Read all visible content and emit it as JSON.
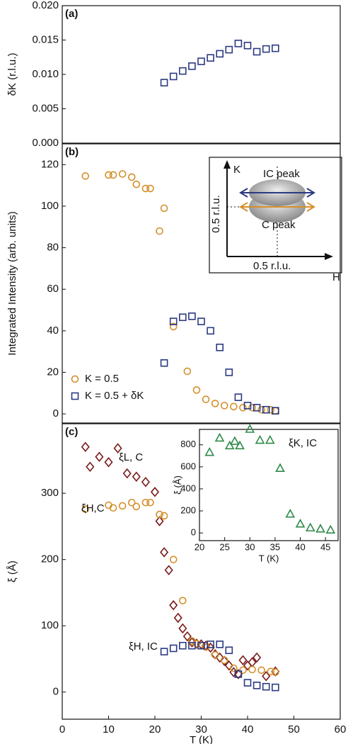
{
  "chart_data": [
    {
      "type": "scatter",
      "panel_label": "(a)",
      "ylabel": "δK (r.l.u.)",
      "xlim": [
        0,
        60
      ],
      "ylim": [
        0,
        0.02
      ],
      "yticks": [
        {
          "value": 0,
          "label": "0.000"
        },
        0.005,
        {
          "value": 0.01,
          "label": "0.010"
        },
        0.015,
        {
          "value": 0.02,
          "label": "0.020"
        }
      ],
      "series": [
        {
          "color": "#2b3a82",
          "marker": "square",
          "x": [
            22,
            24,
            26,
            28,
            30,
            32,
            34,
            36,
            38,
            40,
            42,
            44,
            46
          ],
          "values": [
            0.0088,
            0.0097,
            0.0105,
            0.0112,
            0.0119,
            0.0124,
            0.013,
            0.0136,
            0.0145,
            0.0142,
            0.0133,
            0.0137,
            0.0138
          ]
        }
      ]
    },
    {
      "type": "scatter",
      "panel_label": "(b)",
      "ylabel": "Integrated Intensity (arb. units)",
      "xlim": [
        0,
        60
      ],
      "ylim": [
        -4.4,
        130
      ],
      "yticks": [
        0,
        20,
        40,
        60,
        80,
        100,
        120
      ],
      "legend": "lower left",
      "annotations": [
        "K",
        "H",
        "IC peak",
        "C peak",
        "0.5 r.l.u.",
        "0.5 r.l.u."
      ],
      "series": [
        {
          "name": "K = 0.5",
          "color": "#d4902c",
          "marker": "circle",
          "x": [
            5,
            10,
            11,
            13,
            15,
            16,
            18,
            19,
            21,
            22,
            24,
            27,
            29,
            31,
            33,
            35,
            37,
            39,
            41,
            43,
            45,
            46
          ],
          "values": [
            114.5,
            115,
            115,
            115.5,
            114,
            110.5,
            108.5,
            108.5,
            88,
            99,
            42,
            20.5,
            11.5,
            7,
            5,
            4,
            3.5,
            3,
            3,
            2,
            2,
            1.5
          ]
        },
        {
          "name": "K = 0.5 + δK",
          "color": "#2b3a82",
          "marker": "square",
          "x": [
            22,
            24,
            26,
            28,
            30,
            32,
            34,
            36,
            38,
            40,
            42,
            44,
            46
          ],
          "values": [
            24.5,
            44.5,
            46.5,
            47,
            44.5,
            40,
            32,
            20,
            8,
            4,
            3,
            2,
            1.5
          ]
        }
      ]
    },
    {
      "type": "scatter",
      "panel_label": "(c)",
      "ylabel": "ξ (Å)",
      "xlabel": "T (K)",
      "xlim": [
        0,
        60
      ],
      "ylim": [
        -41,
        405
      ],
      "xticks": [
        0,
        10,
        20,
        30,
        40,
        50,
        60
      ],
      "yticks": [
        0,
        100,
        200,
        300
      ],
      "annotations": [
        "ξL, C",
        "ξH,C",
        "ξH, IC"
      ],
      "series": [
        {
          "color": "#7a1a1a",
          "marker": "diamond",
          "x": [
            5,
            6,
            8,
            10,
            12,
            14,
            16,
            18,
            20,
            21,
            22,
            23,
            24,
            25,
            26,
            27,
            28,
            29,
            30,
            31,
            32,
            33,
            34,
            35,
            36,
            37,
            38,
            39,
            40,
            41,
            42,
            44,
            46
          ],
          "values": [
            370,
            340,
            355,
            347,
            368,
            330,
            325,
            317,
            302,
            258,
            211,
            184,
            131,
            112,
            96,
            84,
            75,
            73,
            72,
            70,
            67,
            57,
            52,
            47,
            40,
            30,
            27,
            48,
            40,
            45,
            52,
            24,
            31
          ]
        },
        {
          "color": "#d4902c",
          "marker": "circle",
          "x": [
            5,
            10,
            11,
            13,
            15,
            16,
            18,
            19,
            21,
            22,
            24,
            26,
            28,
            29,
            31,
            33,
            35,
            37,
            39,
            41,
            43,
            45,
            46
          ],
          "values": [
            276,
            282,
            278,
            281,
            286,
            280,
            286,
            286,
            268,
            266,
            200,
            138,
            77,
            73,
            68,
            56,
            48,
            36,
            33,
            34,
            33,
            31,
            30
          ]
        },
        {
          "color": "#2b3a82",
          "marker": "square",
          "x": [
            22,
            24,
            26,
            28,
            30,
            32,
            34,
            36,
            38,
            40,
            42,
            44,
            46
          ],
          "values": [
            61,
            66,
            70,
            70,
            70,
            72,
            72,
            63,
            27,
            14,
            10,
            8,
            7
          ]
        }
      ]
    },
    {
      "type": "scatter",
      "inset": true,
      "ylabel": "ξ (Å)",
      "xlabel": "T (K)",
      "xlim": [
        20,
        47.5
      ],
      "ylim": [
        -70,
        940
      ],
      "xticks": [
        20,
        25,
        30,
        35,
        40,
        45
      ],
      "yticks": [
        0,
        200,
        400,
        600,
        800
      ],
      "annotations": [
        "ξK, IC"
      ],
      "series": [
        {
          "color": "#2f8a4a",
          "marker": "triangle",
          "x": [
            22,
            24,
            26,
            27,
            28,
            30,
            32,
            34,
            36,
            38,
            40,
            42,
            44,
            46
          ],
          "values": [
            730,
            860,
            790,
            830,
            790,
            940,
            840,
            840,
            585,
            170,
            80,
            45,
            35,
            25
          ]
        }
      ]
    }
  ]
}
